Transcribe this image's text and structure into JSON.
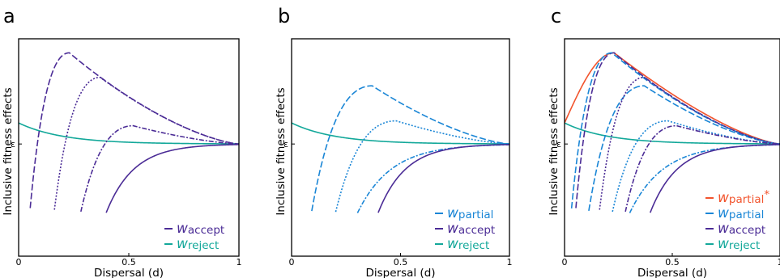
{
  "colors": {
    "accept": "#4B2C96",
    "reject": "#13A89A",
    "partial": "#1A86D6",
    "partial_star": "#F2542D",
    "axis": "#000000"
  },
  "shared_axes": {
    "xlabel": "Dispersal (d)",
    "ylabel": "Inclusive fitness effects",
    "x_ticks": [
      "0",
      "0.5",
      "1"
    ],
    "y_tick": "ε"
  },
  "chart_data": [
    {
      "panel": "a",
      "type": "line",
      "xlim": [
        0,
        1
      ],
      "ylim": [
        -1.6,
        1.5
      ],
      "y_reference": 0,
      "legend_position": "bottom-right",
      "legend": [
        {
          "key": "accept",
          "sym": "w",
          "sub": "accept",
          "star": "",
          "style": "dashed"
        },
        {
          "key": "reject",
          "sym": "w",
          "sub": "reject",
          "star": "",
          "style": "solid"
        }
      ],
      "series": [
        {
          "name": "w_reject",
          "key": "reject",
          "dash": "",
          "params": {
            "kind": "reject",
            "a": 0.3,
            "k": 5.0
          }
        },
        {
          "name": "w_accept",
          "key": "accept",
          "dash": "8,3",
          "params": {
            "kind": "hump",
            "x0": 0.05,
            "xpk": 0.23,
            "peak": 1.3,
            "k": 3.4
          }
        },
        {
          "name": "w_accept",
          "key": "accept",
          "dash": "2,2",
          "params": {
            "kind": "hump",
            "x0": 0.16,
            "xpk": 0.37,
            "peak": 0.95,
            "k": 4.2
          }
        },
        {
          "name": "w_accept",
          "key": "accept",
          "dash": "6,2,2,2",
          "params": {
            "kind": "hump",
            "x0": 0.28,
            "xpk": 0.52,
            "peak": 0.26,
            "k": 6.0
          }
        },
        {
          "name": "w_accept",
          "key": "accept",
          "dash": "",
          "params": {
            "kind": "rise",
            "x0": 0.395,
            "k": 8.0
          }
        }
      ]
    },
    {
      "panel": "b",
      "type": "line",
      "xlim": [
        0,
        1
      ],
      "ylim": [
        -1.6,
        1.5
      ],
      "y_reference": 0,
      "legend_position": "bottom-right",
      "legend": [
        {
          "key": "partial",
          "sym": "w",
          "sub": "partial",
          "star": "",
          "style": "dashed"
        },
        {
          "key": "accept",
          "sym": "w",
          "sub": "accept",
          "star": "",
          "style": "dashed"
        },
        {
          "key": "reject",
          "sym": "w",
          "sub": "reject",
          "star": "",
          "style": "solid"
        }
      ],
      "series": [
        {
          "name": "w_reject",
          "key": "reject",
          "dash": "",
          "params": {
            "kind": "reject",
            "a": 0.3,
            "k": 5.0
          }
        },
        {
          "name": "w_partial",
          "key": "partial",
          "dash": "8,3",
          "params": {
            "kind": "hump",
            "x0": 0.09,
            "xpk": 0.37,
            "peak": 0.83,
            "k": 3.8
          }
        },
        {
          "name": "w_partial",
          "key": "partial",
          "dash": "2,2",
          "params": {
            "kind": "hump",
            "x0": 0.2,
            "xpk": 0.48,
            "peak": 0.33,
            "k": 4.5
          }
        },
        {
          "name": "w_partial",
          "key": "partial",
          "dash": "6,2,2,2",
          "params": {
            "kind": "rise",
            "x0": 0.3,
            "k": 6.5
          }
        },
        {
          "name": "w_accept",
          "key": "accept",
          "dash": "",
          "params": {
            "kind": "rise",
            "x0": 0.395,
            "k": 8.0
          }
        }
      ]
    },
    {
      "panel": "c",
      "type": "line",
      "xlim": [
        0,
        1
      ],
      "ylim": [
        -1.6,
        1.5
      ],
      "y_reference": 0,
      "legend_position": "bottom-right",
      "legend": [
        {
          "key": "partial_star",
          "sym": "w",
          "sub": "partial",
          "star": "*",
          "style": "solid"
        },
        {
          "key": "partial",
          "sym": "w",
          "sub": "partial",
          "star": "",
          "style": "dashed"
        },
        {
          "key": "accept",
          "sym": "w",
          "sub": "accept",
          "star": "",
          "style": "dashed"
        },
        {
          "key": "reject",
          "sym": "w",
          "sub": "reject",
          "star": "",
          "style": "solid"
        }
      ],
      "series": [
        {
          "name": "w_reject",
          "key": "reject",
          "dash": "",
          "params": {
            "kind": "reject",
            "a": 0.3,
            "k": 5.0
          }
        },
        {
          "name": "w_partial*",
          "key": "partial_star",
          "dash": "",
          "params": {
            "kind": "envelope",
            "y0": 0.3,
            "xpk": 0.23,
            "peak": 1.3,
            "k": 3.4
          }
        },
        {
          "name": "w_accept",
          "key": "accept",
          "dash": "8,3",
          "params": {
            "kind": "hump",
            "x0": 0.05,
            "xpk": 0.23,
            "peak": 1.3,
            "k": 3.4
          }
        },
        {
          "name": "w_partial",
          "key": "partial",
          "dash": "8,3",
          "params": {
            "kind": "hump",
            "x0": 0.03,
            "xpk": 0.22,
            "peak": 1.3,
            "k": 3.4
          }
        },
        {
          "name": "w_partial",
          "key": "partial",
          "dash": "8,3",
          "params": {
            "kind": "hump",
            "x0": 0.11,
            "xpk": 0.37,
            "peak": 0.83,
            "k": 3.8
          }
        },
        {
          "name": "w_accept",
          "key": "accept",
          "dash": "2,2",
          "params": {
            "kind": "hump",
            "x0": 0.16,
            "xpk": 0.37,
            "peak": 0.95,
            "k": 4.2
          }
        },
        {
          "name": "w_partial",
          "key": "partial",
          "dash": "2,2",
          "params": {
            "kind": "hump",
            "x0": 0.22,
            "xpk": 0.48,
            "peak": 0.33,
            "k": 4.5
          }
        },
        {
          "name": "w_accept",
          "key": "accept",
          "dash": "6,2,2,2",
          "params": {
            "kind": "hump",
            "x0": 0.28,
            "xpk": 0.52,
            "peak": 0.26,
            "k": 6.0
          }
        },
        {
          "name": "w_partial",
          "key": "partial",
          "dash": "6,2,2,2",
          "params": {
            "kind": "rise",
            "x0": 0.3,
            "k": 6.5
          }
        },
        {
          "name": "w_accept",
          "key": "accept",
          "dash": "",
          "params": {
            "kind": "rise",
            "x0": 0.395,
            "k": 8.0
          }
        }
      ]
    }
  ]
}
